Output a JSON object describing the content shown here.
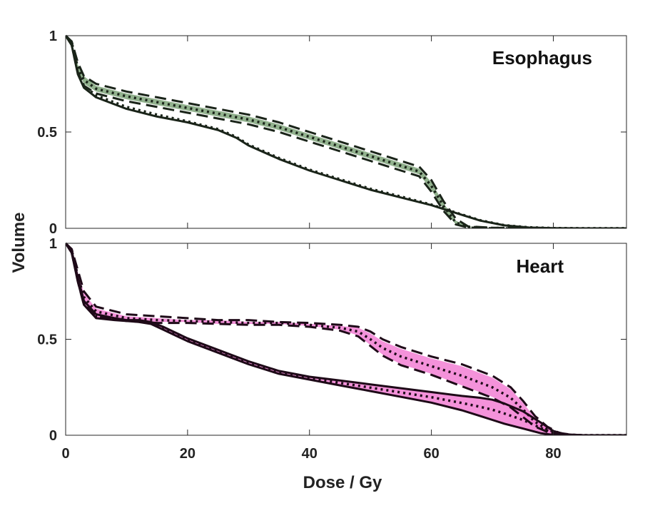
{
  "figure": {
    "ylabel": "Volume",
    "xlabel": "Dose / Gy"
  },
  "chart_data": [
    {
      "type": "line",
      "panel_title": "Esophagus",
      "xlabel": "",
      "ylabel": "Volume",
      "xlim": [
        0,
        92
      ],
      "ylim": [
        0,
        1
      ],
      "xticks": [
        0,
        20,
        40,
        60,
        80
      ],
      "yticks": [
        0,
        0.5,
        1
      ],
      "ytick_labels": [
        "0",
        "0.5",
        "1"
      ],
      "band_color": "#7fa57a",
      "line_color": "#1a2419",
      "series": [
        {
          "style": "band",
          "x": [
            0,
            1,
            2,
            3,
            5,
            10,
            15,
            20,
            25,
            30,
            35,
            40,
            45,
            50,
            55,
            58,
            60,
            62,
            64,
            66,
            70,
            75,
            80,
            92
          ],
          "upper": [
            1,
            0.97,
            0.85,
            0.79,
            0.74,
            0.7,
            0.67,
            0.64,
            0.61,
            0.58,
            0.54,
            0.49,
            0.44,
            0.39,
            0.34,
            0.31,
            0.24,
            0.13,
            0.04,
            0.01,
            0.002,
            0.001,
            0,
            0
          ],
          "lower": [
            1,
            0.96,
            0.82,
            0.75,
            0.71,
            0.67,
            0.64,
            0.61,
            0.58,
            0.55,
            0.51,
            0.46,
            0.41,
            0.36,
            0.31,
            0.28,
            0.2,
            0.1,
            0.02,
            0.005,
            0.001,
            0,
            0,
            0
          ]
        },
        {
          "style": "dashed",
          "x": [
            0,
            1,
            2,
            3,
            5,
            10,
            15,
            20,
            25,
            30,
            35,
            40,
            45,
            50,
            55,
            58,
            60,
            62,
            64,
            66,
            70,
            75,
            80,
            92
          ],
          "y": [
            1,
            0.97,
            0.86,
            0.79,
            0.75,
            0.71,
            0.68,
            0.65,
            0.62,
            0.59,
            0.55,
            0.5,
            0.45,
            0.4,
            0.35,
            0.32,
            0.25,
            0.14,
            0.05,
            0.01,
            0.003,
            0.001,
            0,
            0
          ]
        },
        {
          "style": "dashed",
          "x": [
            0,
            1,
            2,
            3,
            5,
            10,
            15,
            20,
            25,
            30,
            35,
            40,
            45,
            50,
            55,
            58,
            60,
            62,
            64,
            66,
            70,
            75,
            80,
            92
          ],
          "y": [
            1,
            0.96,
            0.81,
            0.74,
            0.7,
            0.66,
            0.63,
            0.6,
            0.57,
            0.54,
            0.5,
            0.45,
            0.4,
            0.35,
            0.3,
            0.27,
            0.19,
            0.09,
            0.02,
            0.004,
            0.001,
            0,
            0,
            0
          ]
        },
        {
          "style": "dotted",
          "x": [
            0,
            1,
            2,
            3,
            5,
            10,
            15,
            20,
            25,
            30,
            35,
            40,
            45,
            50,
            55,
            58,
            60,
            62,
            64,
            66,
            70,
            75,
            80,
            92
          ],
          "y": [
            1,
            0.965,
            0.835,
            0.77,
            0.725,
            0.685,
            0.655,
            0.625,
            0.595,
            0.565,
            0.525,
            0.475,
            0.425,
            0.375,
            0.325,
            0.295,
            0.22,
            0.115,
            0.03,
            0.007,
            0.002,
            0.001,
            0,
            0
          ]
        },
        {
          "style": "solid",
          "x": [
            0,
            1,
            2,
            3,
            5,
            10,
            15,
            20,
            25,
            28,
            30,
            35,
            40,
            45,
            50,
            55,
            60,
            64,
            68,
            72,
            76,
            80,
            85,
            92
          ],
          "y": [
            1,
            0.95,
            0.8,
            0.73,
            0.68,
            0.62,
            0.58,
            0.55,
            0.51,
            0.47,
            0.43,
            0.36,
            0.3,
            0.25,
            0.2,
            0.16,
            0.12,
            0.08,
            0.04,
            0.015,
            0.004,
            0.001,
            0,
            0
          ]
        },
        {
          "style": "dotted",
          "x": [
            0,
            1,
            2,
            3,
            5,
            10,
            15,
            20,
            25,
            28,
            30,
            35,
            40,
            45,
            50,
            55,
            60,
            64,
            68,
            72,
            76,
            80,
            85,
            92
          ],
          "y": [
            1,
            0.955,
            0.81,
            0.74,
            0.69,
            0.63,
            0.59,
            0.555,
            0.515,
            0.475,
            0.435,
            0.365,
            0.305,
            0.255,
            0.205,
            0.165,
            0.123,
            0.082,
            0.042,
            0.016,
            0.005,
            0.001,
            0,
            0
          ]
        }
      ]
    },
    {
      "type": "line",
      "panel_title": "Heart",
      "xlabel": "Dose / Gy",
      "ylabel": "Volume",
      "xlim": [
        0,
        92
      ],
      "ylim": [
        0,
        1
      ],
      "xticks": [
        0,
        20,
        40,
        60,
        80
      ],
      "xtick_labels": [
        "0",
        "20",
        "40",
        "60",
        "80"
      ],
      "yticks": [
        0,
        0.5,
        1
      ],
      "ytick_labels": [
        "0",
        "0.5",
        "1"
      ],
      "band_color": "#f27fd4",
      "line_color": "#1e0a18",
      "series": [
        {
          "style": "band",
          "x": [
            0,
            1,
            2,
            3,
            5,
            10,
            15,
            20,
            25,
            30,
            35,
            40,
            45,
            48,
            50,
            52,
            55,
            60,
            65,
            70,
            73,
            75,
            77,
            79,
            81,
            83,
            85,
            92
          ],
          "upper": [
            1,
            0.97,
            0.85,
            0.74,
            0.66,
            0.62,
            0.61,
            0.6,
            0.6,
            0.59,
            0.59,
            0.58,
            0.57,
            0.56,
            0.53,
            0.49,
            0.45,
            0.4,
            0.36,
            0.3,
            0.24,
            0.17,
            0.09,
            0.04,
            0.01,
            0.003,
            0,
            0
          ],
          "lower": [
            1,
            0.96,
            0.8,
            0.69,
            0.63,
            0.6,
            0.59,
            0.59,
            0.58,
            0.58,
            0.58,
            0.57,
            0.55,
            0.52,
            0.47,
            0.42,
            0.37,
            0.32,
            0.26,
            0.2,
            0.15,
            0.1,
            0.05,
            0.02,
            0.005,
            0.001,
            0,
            0
          ]
        },
        {
          "style": "dashed",
          "x": [
            0,
            1,
            2,
            3,
            5,
            10,
            15,
            20,
            25,
            30,
            35,
            40,
            45,
            48,
            50,
            52,
            55,
            60,
            65,
            70,
            73,
            75,
            77,
            79,
            81,
            83,
            85,
            92
          ],
          "y": [
            1,
            0.97,
            0.86,
            0.75,
            0.67,
            0.63,
            0.62,
            0.61,
            0.6,
            0.6,
            0.59,
            0.585,
            0.575,
            0.565,
            0.54,
            0.5,
            0.46,
            0.41,
            0.37,
            0.31,
            0.25,
            0.18,
            0.1,
            0.045,
            0.012,
            0.003,
            0,
            0
          ]
        },
        {
          "style": "dashed",
          "x": [
            0,
            1,
            2,
            3,
            5,
            10,
            15,
            20,
            25,
            30,
            35,
            40,
            45,
            48,
            50,
            52,
            55,
            60,
            65,
            70,
            73,
            75,
            77,
            79,
            81,
            83,
            85,
            92
          ],
          "y": [
            1,
            0.96,
            0.8,
            0.68,
            0.62,
            0.595,
            0.585,
            0.585,
            0.58,
            0.575,
            0.575,
            0.565,
            0.545,
            0.515,
            0.465,
            0.415,
            0.365,
            0.315,
            0.255,
            0.195,
            0.145,
            0.095,
            0.045,
            0.018,
            0.004,
            0.001,
            0,
            0
          ]
        },
        {
          "style": "dotted",
          "x": [
            0,
            1,
            2,
            3,
            5,
            10,
            15,
            20,
            25,
            30,
            35,
            40,
            45,
            48,
            50,
            52,
            55,
            60,
            65,
            70,
            73,
            75,
            77,
            79,
            81,
            83,
            85,
            92
          ],
          "y": [
            1,
            0.965,
            0.83,
            0.72,
            0.645,
            0.61,
            0.6,
            0.595,
            0.59,
            0.585,
            0.585,
            0.575,
            0.56,
            0.54,
            0.5,
            0.455,
            0.41,
            0.36,
            0.31,
            0.25,
            0.195,
            0.135,
            0.07,
            0.03,
            0.008,
            0.002,
            0,
            0
          ]
        },
        {
          "style": "band",
          "x": [
            0,
            1,
            2,
            3,
            5,
            8,
            10,
            12,
            14,
            16,
            18,
            20,
            25,
            30,
            35,
            40,
            45,
            50,
            55,
            60,
            65,
            68,
            70,
            72,
            75,
            78,
            80,
            82,
            85,
            92
          ],
          "upper": [
            1,
            0.96,
            0.82,
            0.7,
            0.63,
            0.61,
            0.6,
            0.6,
            0.59,
            0.56,
            0.53,
            0.5,
            0.44,
            0.38,
            0.33,
            0.3,
            0.28,
            0.26,
            0.24,
            0.22,
            0.2,
            0.19,
            0.18,
            0.16,
            0.12,
            0.06,
            0.02,
            0.005,
            0,
            0
          ],
          "lower": [
            1,
            0.95,
            0.8,
            0.68,
            0.61,
            0.6,
            0.595,
            0.59,
            0.58,
            0.55,
            0.52,
            0.49,
            0.43,
            0.37,
            0.32,
            0.29,
            0.26,
            0.23,
            0.2,
            0.17,
            0.13,
            0.1,
            0.08,
            0.06,
            0.035,
            0.01,
            0.002,
            0,
            0,
            0
          ]
        },
        {
          "style": "solid",
          "x": [
            0,
            1,
            2,
            3,
            5,
            8,
            10,
            12,
            14,
            16,
            18,
            20,
            25,
            30,
            35,
            40,
            45,
            50,
            55,
            60,
            65,
            68,
            70,
            72,
            75,
            78,
            80,
            82,
            85,
            92
          ],
          "y": [
            1,
            0.96,
            0.82,
            0.7,
            0.63,
            0.61,
            0.6,
            0.6,
            0.59,
            0.565,
            0.535,
            0.505,
            0.445,
            0.385,
            0.335,
            0.305,
            0.285,
            0.265,
            0.245,
            0.225,
            0.205,
            0.195,
            0.185,
            0.165,
            0.125,
            0.065,
            0.022,
            0.005,
            0,
            0
          ]
        },
        {
          "style": "solid",
          "x": [
            0,
            1,
            2,
            3,
            5,
            8,
            10,
            12,
            14,
            16,
            18,
            20,
            25,
            30,
            35,
            40,
            45,
            50,
            55,
            60,
            65,
            68,
            70,
            72,
            75,
            78,
            80,
            82,
            85,
            92
          ],
          "y": [
            1,
            0.95,
            0.8,
            0.68,
            0.61,
            0.6,
            0.595,
            0.59,
            0.58,
            0.55,
            0.52,
            0.49,
            0.43,
            0.37,
            0.32,
            0.29,
            0.26,
            0.23,
            0.2,
            0.17,
            0.13,
            0.1,
            0.08,
            0.06,
            0.035,
            0.01,
            0.002,
            0,
            0,
            0
          ]
        },
        {
          "style": "dotted",
          "x": [
            0,
            1,
            2,
            3,
            5,
            8,
            10,
            12,
            14,
            16,
            18,
            20,
            25,
            30,
            35,
            40,
            45,
            50,
            55,
            60,
            65,
            68,
            70,
            72,
            75,
            78,
            80,
            82,
            85,
            92
          ],
          "y": [
            1,
            0.955,
            0.81,
            0.69,
            0.62,
            0.605,
            0.598,
            0.595,
            0.585,
            0.558,
            0.528,
            0.498,
            0.438,
            0.378,
            0.328,
            0.298,
            0.273,
            0.248,
            0.223,
            0.198,
            0.168,
            0.148,
            0.133,
            0.113,
            0.08,
            0.037,
            0.012,
            0.003,
            0,
            0
          ]
        }
      ]
    }
  ]
}
